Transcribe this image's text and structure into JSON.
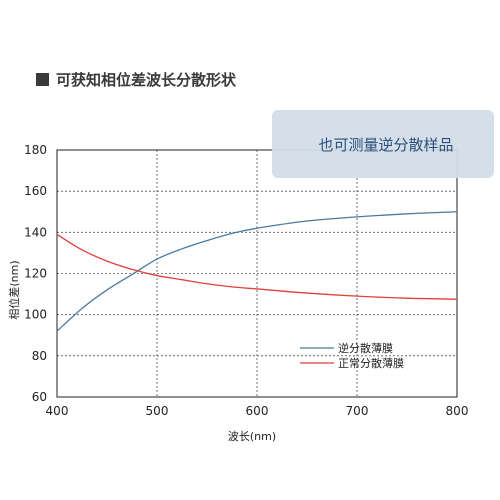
{
  "chart_data": {
    "type": "line",
    "title": "可获知相位差波长分散形状",
    "xlabel": "波长(nm)",
    "ylabel": "相位差(nm)",
    "xlim": [
      400,
      800
    ],
    "ylim": [
      60,
      180
    ],
    "x_ticks": [
      400,
      500,
      600,
      700,
      800
    ],
    "y_ticks": [
      60,
      80,
      100,
      120,
      140,
      160,
      180
    ],
    "grid": "dashed",
    "legend_position": "lower-right",
    "callout": "也可测量逆分散样品",
    "series": [
      {
        "name": "逆分散薄膜",
        "color": "#4a7aa0",
        "x": [
          400,
          425,
          450,
          475,
          500,
          525,
          550,
          575,
          600,
          650,
          700,
          750,
          800
        ],
        "y": [
          92,
          103,
          112,
          119.5,
          127,
          132,
          136,
          139.5,
          142,
          145.5,
          147.5,
          149,
          150
        ]
      },
      {
        "name": "正常分散薄膜",
        "color": "#e0403a",
        "x": [
          400,
          425,
          450,
          475,
          500,
          525,
          550,
          575,
          600,
          650,
          700,
          750,
          800
        ],
        "y": [
          139,
          131.5,
          126,
          122,
          119,
          117,
          115,
          113.5,
          112.5,
          110.5,
          109,
          108,
          107.5
        ]
      }
    ]
  }
}
